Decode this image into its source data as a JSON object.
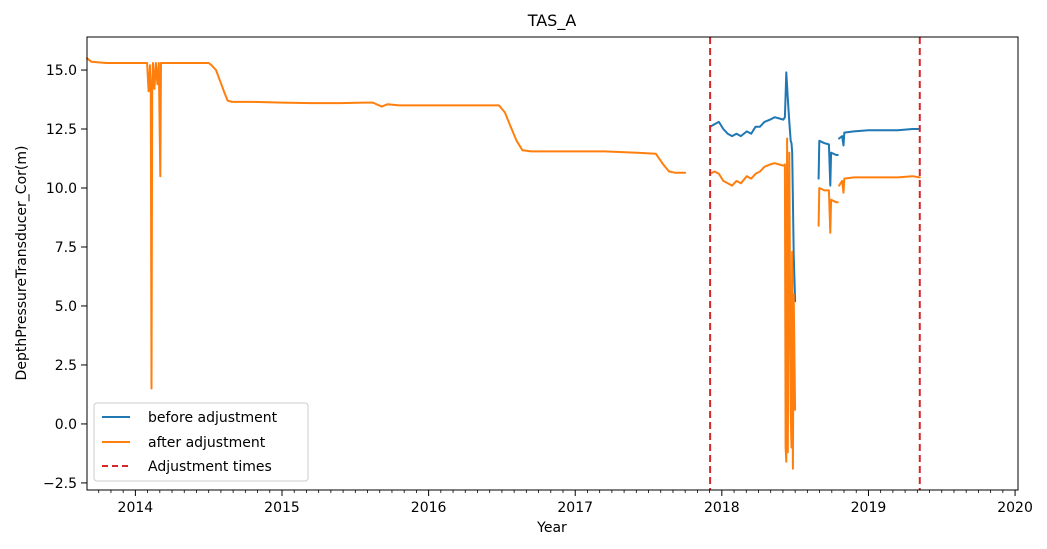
{
  "chart_data": {
    "type": "line",
    "title": "TAS_A",
    "xlabel": "Year",
    "ylabel": "DepthPressureTransducer_Cor(m)",
    "xlim": [
      2013.67,
      2020.02
    ],
    "ylim": [
      -2.8,
      16.4
    ],
    "x_ticks": [
      2014,
      2015,
      2016,
      2017,
      2018,
      2019,
      2020
    ],
    "x_tick_labels": [
      "2014",
      "2015",
      "2016",
      "2017",
      "2018",
      "2019",
      "2020"
    ],
    "y_ticks": [
      -2.5,
      0.0,
      2.5,
      5.0,
      7.5,
      10.0,
      12.5,
      15.0
    ],
    "y_tick_labels": [
      "−2.5",
      "0.0",
      "2.5",
      "5.0",
      "7.5",
      "10.0",
      "12.5",
      "15.0"
    ],
    "grid": false,
    "legend_position": "lower-left",
    "colors": {
      "before": "#1f77b4",
      "after": "#ff7f0e",
      "adjust": "#d62728"
    },
    "series": [
      {
        "name": "before adjustment",
        "segments": [
          [
            [
              2017.92,
              12.6
            ],
            [
              2017.95,
              12.7
            ],
            [
              2017.98,
              12.8
            ],
            [
              2018.01,
              12.5
            ],
            [
              2018.04,
              12.3
            ],
            [
              2018.07,
              12.2
            ],
            [
              2018.1,
              12.3
            ],
            [
              2018.13,
              12.2
            ],
            [
              2018.17,
              12.4
            ],
            [
              2018.2,
              12.3
            ],
            [
              2018.23,
              12.6
            ],
            [
              2018.26,
              12.6
            ],
            [
              2018.29,
              12.8
            ],
            [
              2018.33,
              12.9
            ],
            [
              2018.36,
              13.0
            ],
            [
              2018.39,
              12.95
            ],
            [
              2018.42,
              12.9
            ],
            [
              2018.43,
              13.0
            ],
            [
              2018.44,
              14.9
            ],
            [
              2018.45,
              13.8
            ],
            [
              2018.46,
              12.8
            ],
            [
              2018.47,
              12.0
            ],
            [
              2018.475,
              11.9
            ],
            [
              2018.48,
              11.5
            ],
            [
              2018.49,
              7.2
            ],
            [
              2018.5,
              5.2
            ]
          ],
          [
            [
              2018.66,
              10.4
            ],
            [
              2018.665,
              12.0
            ],
            [
              2018.7,
              11.9
            ],
            [
              2018.73,
              11.85
            ],
            [
              2018.74,
              10.1
            ],
            [
              2018.745,
              11.5
            ],
            [
              2018.78,
              11.4
            ],
            [
              2018.79,
              11.4
            ]
          ],
          [
            [
              2018.8,
              12.1
            ],
            [
              2018.82,
              12.2
            ],
            [
              2018.83,
              11.8
            ],
            [
              2018.835,
              12.35
            ],
            [
              2018.9,
              12.4
            ],
            [
              2019.0,
              12.45
            ],
            [
              2019.1,
              12.45
            ],
            [
              2019.2,
              12.45
            ],
            [
              2019.3,
              12.5
            ],
            [
              2019.35,
              12.5
            ]
          ]
        ]
      },
      {
        "name": "after adjustment",
        "segments": [
          [
            [
              2013.67,
              15.5
            ],
            [
              2013.7,
              15.35
            ],
            [
              2013.8,
              15.3
            ],
            [
              2013.9,
              15.3
            ],
            [
              2014.0,
              15.3
            ],
            [
              2014.08,
              15.3
            ],
            [
              2014.09,
              14.1
            ],
            [
              2014.1,
              15.2
            ],
            [
              2014.105,
              14.0
            ],
            [
              2014.11,
              1.5
            ],
            [
              2014.115,
              14.1
            ],
            [
              2014.12,
              15.3
            ],
            [
              2014.13,
              14.2
            ],
            [
              2014.14,
              15.3
            ],
            [
              2014.15,
              14.4
            ],
            [
              2014.16,
              15.3
            ],
            [
              2014.17,
              10.5
            ],
            [
              2014.175,
              15.3
            ],
            [
              2014.2,
              15.3
            ],
            [
              2014.3,
              15.3
            ],
            [
              2014.4,
              15.3
            ],
            [
              2014.5,
              15.3
            ],
            [
              2014.52,
              15.2
            ],
            [
              2014.55,
              15.0
            ],
            [
              2014.58,
              14.5
            ],
            [
              2014.61,
              14.0
            ],
            [
              2014.63,
              13.7
            ],
            [
              2014.66,
              13.65
            ],
            [
              2014.8,
              13.65
            ],
            [
              2015.0,
              13.62
            ],
            [
              2015.2,
              13.6
            ],
            [
              2015.4,
              13.6
            ],
            [
              2015.55,
              13.62
            ],
            [
              2015.62,
              13.62
            ],
            [
              2015.68,
              13.45
            ],
            [
              2015.72,
              13.55
            ],
            [
              2015.8,
              13.5
            ],
            [
              2016.0,
              13.5
            ],
            [
              2016.2,
              13.5
            ],
            [
              2016.4,
              13.5
            ],
            [
              2016.48,
              13.5
            ],
            [
              2016.52,
              13.2
            ],
            [
              2016.56,
              12.6
            ],
            [
              2016.6,
              12.0
            ],
            [
              2016.64,
              11.6
            ],
            [
              2016.7,
              11.55
            ],
            [
              2016.8,
              11.55
            ],
            [
              2017.0,
              11.55
            ],
            [
              2017.2,
              11.55
            ],
            [
              2017.4,
              11.5
            ],
            [
              2017.55,
              11.45
            ],
            [
              2017.6,
              11.0
            ],
            [
              2017.64,
              10.7
            ],
            [
              2017.68,
              10.65
            ],
            [
              2017.75,
              10.65
            ]
          ],
          [
            [
              2017.92,
              10.6
            ],
            [
              2017.95,
              10.7
            ],
            [
              2017.98,
              10.6
            ],
            [
              2018.01,
              10.3
            ],
            [
              2018.04,
              10.2
            ],
            [
              2018.07,
              10.1
            ],
            [
              2018.1,
              10.3
            ],
            [
              2018.13,
              10.2
            ],
            [
              2018.17,
              10.5
            ],
            [
              2018.2,
              10.4
            ],
            [
              2018.23,
              10.6
            ],
            [
              2018.26,
              10.7
            ],
            [
              2018.29,
              10.9
            ],
            [
              2018.33,
              11.0
            ],
            [
              2018.36,
              11.05
            ],
            [
              2018.39,
              11.0
            ],
            [
              2018.42,
              10.95
            ],
            [
              2018.43,
              11.0
            ],
            [
              2018.435,
              -1.0
            ],
            [
              2018.44,
              -1.6
            ],
            [
              2018.445,
              12.1
            ],
            [
              2018.45,
              -1.2
            ],
            [
              2018.46,
              11.5
            ],
            [
              2018.47,
              0.5
            ],
            [
              2018.475,
              -1.0
            ],
            [
              2018.48,
              7.3
            ],
            [
              2018.485,
              -1.9
            ],
            [
              2018.49,
              5.5
            ],
            [
              2018.5,
              0.6
            ]
          ],
          [
            [
              2018.66,
              8.4
            ],
            [
              2018.665,
              10.0
            ],
            [
              2018.7,
              9.9
            ],
            [
              2018.73,
              9.9
            ],
            [
              2018.74,
              8.1
            ],
            [
              2018.745,
              9.5
            ],
            [
              2018.78,
              9.4
            ],
            [
              2018.79,
              9.4
            ]
          ],
          [
            [
              2018.8,
              10.1
            ],
            [
              2018.82,
              10.3
            ],
            [
              2018.83,
              9.8
            ],
            [
              2018.835,
              10.4
            ],
            [
              2018.9,
              10.45
            ],
            [
              2019.0,
              10.45
            ],
            [
              2019.1,
              10.45
            ],
            [
              2019.2,
              10.45
            ],
            [
              2019.3,
              10.5
            ],
            [
              2019.35,
              10.45
            ]
          ]
        ]
      },
      {
        "name": "Adjustment times",
        "type": "vline",
        "x": [
          2017.92,
          2019.35
        ]
      }
    ]
  }
}
